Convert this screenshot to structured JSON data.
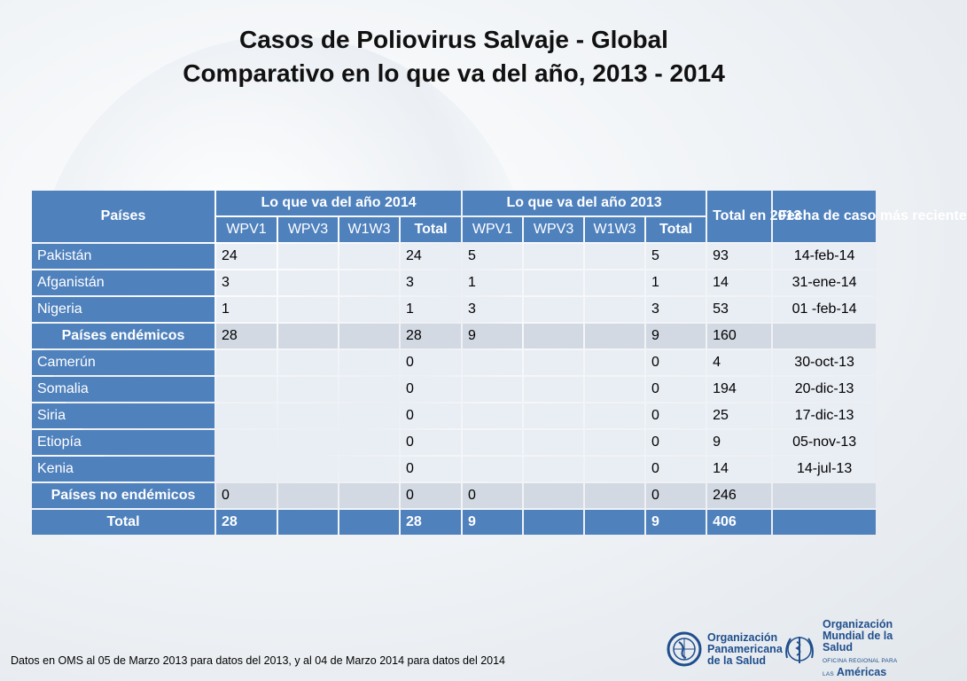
{
  "title": {
    "line1": "Casos de Poliovirus Salvaje - Global",
    "line2": "Comparativo en lo que va del año, 2013 - 2014"
  },
  "table": {
    "header": {
      "countries": "Países",
      "group2014": "Lo que va del año 2014",
      "group2013": "Lo que va del año 2013",
      "total2013": "Total en 2013",
      "latest": "Fecha de caso más reciente"
    },
    "subheaders": [
      "WPV1",
      "WPV3",
      "W1W3",
      "Total",
      "WPV1",
      "WPV3",
      "W1W3",
      "Total"
    ],
    "rows": [
      {
        "country": "Pakistán",
        "y14_wpv1": "24",
        "y14_wpv3": "",
        "y14_w1w3": "",
        "y14_total": "24",
        "y13_wpv1": "5",
        "y13_wpv3": "",
        "y13_w1w3": "",
        "y13_total": "5",
        "total2013": "93",
        "latest": "14-feb-14"
      },
      {
        "country": "Afganistán",
        "y14_wpv1": "3",
        "y14_wpv3": "",
        "y14_w1w3": "",
        "y14_total": "3",
        "y13_wpv1": "1",
        "y13_wpv3": "",
        "y13_w1w3": "",
        "y13_total": "1",
        "total2013": "14",
        "latest": "31-ene-14"
      },
      {
        "country": "Nigeria",
        "y14_wpv1": "1",
        "y14_wpv3": "",
        "y14_w1w3": "",
        "y14_total": "1",
        "y13_wpv1": "3",
        "y13_wpv3": "",
        "y13_w1w3": "",
        "y13_total": "3",
        "total2013": "53",
        "latest": "01 -feb-14"
      },
      {
        "country": "Países endémicos",
        "y14_wpv1": "28",
        "y14_wpv3": "",
        "y14_w1w3": "",
        "y14_total": "28",
        "y13_wpv1": "9",
        "y13_wpv3": "",
        "y13_w1w3": "",
        "y13_total": "9",
        "total2013": "160",
        "latest": ""
      },
      {
        "country": "Camerún",
        "y14_wpv1": "",
        "y14_wpv3": "",
        "y14_w1w3": "",
        "y14_total": "0",
        "y13_wpv1": "",
        "y13_wpv3": "",
        "y13_w1w3": "",
        "y13_total": "0",
        "total2013": "4",
        "latest": "30-oct-13"
      },
      {
        "country": "Somalia",
        "y14_wpv1": "",
        "y14_wpv3": "",
        "y14_w1w3": "",
        "y14_total": "0",
        "y13_wpv1": "",
        "y13_wpv3": "",
        "y13_w1w3": "",
        "y13_total": "0",
        "total2013": "194",
        "latest": "20-dic-13"
      },
      {
        "country": "Siria",
        "y14_wpv1": "",
        "y14_wpv3": "",
        "y14_w1w3": "",
        "y14_total": "0",
        "y13_wpv1": "",
        "y13_wpv3": "",
        "y13_w1w3": "",
        "y13_total": "0",
        "total2013": "25",
        "latest": "17-dic-13"
      },
      {
        "country": "Etiopía",
        "y14_wpv1": "",
        "y14_wpv3": "",
        "y14_w1w3": "",
        "y14_total": "0",
        "y13_wpv1": "",
        "y13_wpv3": "",
        "y13_w1w3": "",
        "y13_total": "0",
        "total2013": "9",
        "latest": "05-nov-13"
      },
      {
        "country": "Kenia",
        "y14_wpv1": "",
        "y14_wpv3": "",
        "y14_w1w3": "",
        "y14_total": "0",
        "y13_wpv1": "",
        "y13_wpv3": "",
        "y13_w1w3": "",
        "y13_total": "0",
        "total2013": "14",
        "latest": "14-jul-13"
      },
      {
        "country": "Países no endémicos",
        "y14_wpv1": "0",
        "y14_wpv3": "",
        "y14_w1w3": "",
        "y14_total": "0",
        "y13_wpv1": "0",
        "y13_wpv3": "",
        "y13_w1w3": "",
        "y13_total": "0",
        "total2013": "246",
        "latest": ""
      },
      {
        "country": "Total",
        "y14_wpv1": "28",
        "y14_wpv3": "",
        "y14_w1w3": "",
        "y14_total": "28",
        "y13_wpv1": "9",
        "y13_wpv3": "",
        "y13_w1w3": "",
        "y13_total": "9",
        "total2013": "406",
        "latest": ""
      }
    ]
  },
  "footnote": "Datos en OMS al 05 de Marzo 2013 para datos del 2013,  y al 04 de Marzo 2014 para datos del 2014",
  "logos": {
    "ops": {
      "line1": "Organización",
      "line2": "Panamericana",
      "line3": "de la Salud"
    },
    "oms": {
      "line1": "Organización",
      "line2": "Mundial de la Salud",
      "small": "OFICINA REGIONAL PARA LAS",
      "region": "Américas"
    }
  },
  "colors": {
    "header_blue": "#4f81bd",
    "cell_light": "#e9edf4",
    "cell_grey": "#d3d9e2",
    "logo_blue": "#1f4e8c"
  }
}
